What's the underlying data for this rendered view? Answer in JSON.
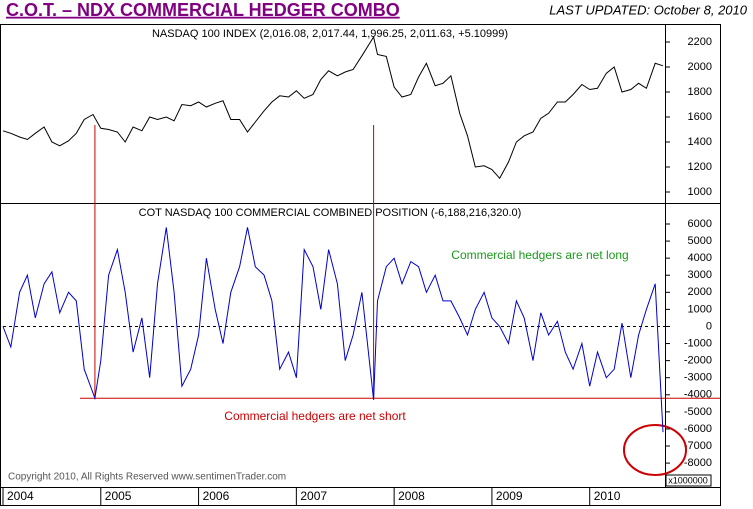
{
  "page": {
    "title": "C.O.T. – NDX COMMERCIAL HEDGER COMBO",
    "last_updated": "LAST UPDATED:  October 8, 2010",
    "copyright": "Copyright 2010, All Rights Reserved   www.sentimenTrader.com"
  },
  "chart_data": [
    {
      "type": "line",
      "title": "NASDAQ 100 INDEX (2,016.08, 2,017.44, 1,996.25, 2,011.63, +5.10999)",
      "color": "#000000",
      "xlim": [
        2004,
        2010.77
      ],
      "ylim": [
        912,
        2344
      ],
      "yticks": [
        1000,
        1200,
        1400,
        1600,
        1800,
        2000,
        2200
      ],
      "x": [
        2004.0,
        2004.08,
        2004.17,
        2004.25,
        2004.33,
        2004.42,
        2004.5,
        2004.58,
        2004.67,
        2004.75,
        2004.83,
        2004.92,
        2005.0,
        2005.08,
        2005.17,
        2005.25,
        2005.33,
        2005.42,
        2005.5,
        2005.58,
        2005.67,
        2005.75,
        2005.83,
        2005.92,
        2006.0,
        2006.08,
        2006.17,
        2006.25,
        2006.33,
        2006.42,
        2006.5,
        2006.58,
        2006.67,
        2006.75,
        2006.83,
        2006.92,
        2007.0,
        2007.08,
        2007.17,
        2007.25,
        2007.33,
        2007.42,
        2007.5,
        2007.58,
        2007.67,
        2007.79,
        2007.83,
        2007.92,
        2008.0,
        2008.08,
        2008.17,
        2008.25,
        2008.33,
        2008.42,
        2008.5,
        2008.58,
        2008.67,
        2008.75,
        2008.83,
        2008.92,
        2009.0,
        2009.08,
        2009.17,
        2009.25,
        2009.33,
        2009.42,
        2009.5,
        2009.58,
        2009.67,
        2009.75,
        2009.83,
        2009.92,
        2010.0,
        2010.08,
        2010.17,
        2010.25,
        2010.33,
        2010.42,
        2010.5,
        2010.58,
        2010.67,
        2010.75
      ],
      "values": [
        1490,
        1470,
        1440,
        1420,
        1470,
        1520,
        1400,
        1370,
        1410,
        1470,
        1580,
        1620,
        1510,
        1500,
        1480,
        1400,
        1520,
        1490,
        1600,
        1580,
        1600,
        1570,
        1700,
        1690,
        1720,
        1680,
        1710,
        1730,
        1580,
        1580,
        1480,
        1560,
        1650,
        1720,
        1770,
        1760,
        1810,
        1750,
        1780,
        1900,
        1970,
        1930,
        1960,
        1980,
        2090,
        2240,
        2100,
        2085,
        1840,
        1760,
        1780,
        1920,
        2030,
        1850,
        1870,
        1930,
        1630,
        1450,
        1200,
        1210,
        1180,
        1110,
        1240,
        1400,
        1450,
        1480,
        1590,
        1630,
        1720,
        1720,
        1780,
        1860,
        1820,
        1830,
        1950,
        2000,
        1800,
        1820,
        1870,
        1830,
        2030,
        2010
      ]
    },
    {
      "type": "line",
      "title": "COT NASDAQ 100 COMMERCIAL COMBINED POSITION (-6,188,216,320.0)",
      "color": "#0000cc",
      "xlim": [
        2004,
        2010.77
      ],
      "ylim": [
        -9400,
        7230
      ],
      "yticks": [
        -8000,
        -7000,
        -6000,
        -5000,
        -4000,
        -3000,
        -2000,
        -1000,
        0,
        1000,
        2000,
        3000,
        4000,
        5000,
        6000
      ],
      "y_multiplier": "x1000000",
      "xticks": [
        2004,
        2005,
        2006,
        2007,
        2008,
        2009,
        2010
      ],
      "x": [
        2004.0,
        2004.08,
        2004.17,
        2004.25,
        2004.33,
        2004.42,
        2004.5,
        2004.58,
        2004.67,
        2004.75,
        2004.83,
        2004.94,
        2005.0,
        2005.08,
        2005.17,
        2005.25,
        2005.33,
        2005.42,
        2005.5,
        2005.58,
        2005.67,
        2005.75,
        2005.83,
        2005.92,
        2006.0,
        2006.08,
        2006.17,
        2006.25,
        2006.33,
        2006.42,
        2006.5,
        2006.58,
        2006.67,
        2006.75,
        2006.83,
        2006.92,
        2007.0,
        2007.08,
        2007.17,
        2007.25,
        2007.33,
        2007.42,
        2007.5,
        2007.58,
        2007.67,
        2007.79,
        2007.83,
        2007.92,
        2008.0,
        2008.08,
        2008.17,
        2008.25,
        2008.33,
        2008.42,
        2008.5,
        2008.58,
        2008.67,
        2008.75,
        2008.83,
        2008.92,
        2009.0,
        2009.08,
        2009.17,
        2009.25,
        2009.33,
        2009.42,
        2009.5,
        2009.58,
        2009.67,
        2009.75,
        2009.83,
        2009.92,
        2010.0,
        2010.08,
        2010.17,
        2010.25,
        2010.33,
        2010.42,
        2010.5,
        2010.58,
        2010.67,
        2010.75
      ],
      "values": [
        0,
        -1200,
        2000,
        3000,
        500,
        2500,
        3200,
        800,
        2000,
        1500,
        -2500,
        -4200,
        -2000,
        3000,
        4500,
        2000,
        -1500,
        500,
        -3000,
        2500,
        5800,
        2000,
        -3500,
        -2500,
        -500,
        4000,
        1000,
        -1000,
        2000,
        3500,
        5800,
        3500,
        3000,
        1500,
        -2500,
        -1500,
        -3000,
        4500,
        3500,
        1000,
        4500,
        2500,
        -2000,
        -500,
        2000,
        -4300,
        1500,
        3500,
        4000,
        2500,
        3800,
        3500,
        2000,
        3000,
        1500,
        1500,
        500,
        -500,
        1000,
        2000,
        500,
        0,
        -1000,
        1500,
        500,
        -2000,
        800,
        -500,
        300,
        -1500,
        -2500,
        -1000,
        -3500,
        -1500,
        -3000,
        -2500,
        200,
        -3000,
        -500,
        1000,
        2500,
        -6188
      ],
      "hline": -4200,
      "vlines": [
        2004.94,
        2007.79
      ],
      "annotations": [
        {
          "text": "Commercial hedgers are net long",
          "color": "#1a9a1a"
        },
        {
          "text": "Commercial hedgers are net short",
          "color": "#cc0000"
        }
      ]
    }
  ]
}
